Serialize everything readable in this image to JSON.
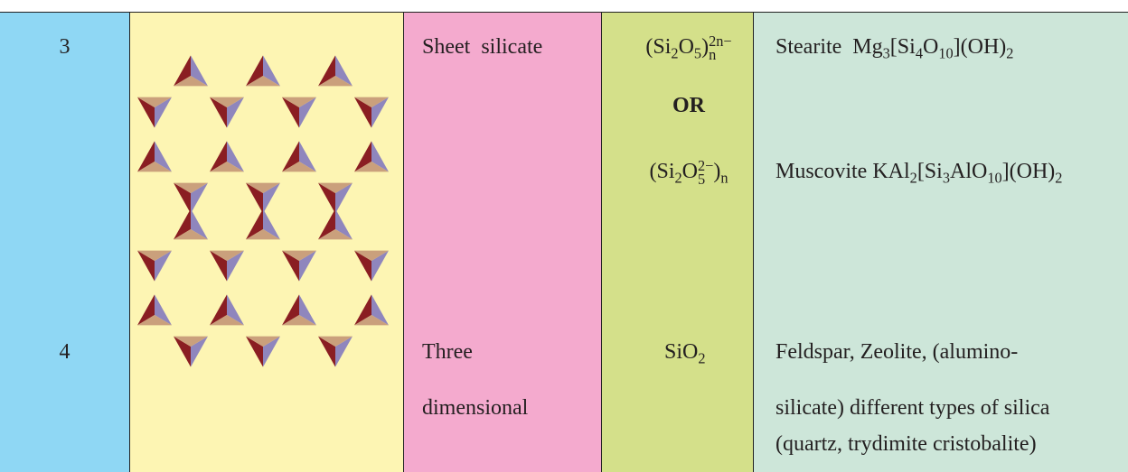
{
  "table": {
    "rows": [
      {
        "number": "3",
        "type": [
          [
            {
              "text": "Sheet  silicate"
            }
          ]
        ],
        "formula": [
          [
            {
              "text": "(Si"
            },
            {
              "sub": "2"
            },
            {
              "text": "O"
            },
            {
              "sub": "5"
            },
            {
              "text": ")"
            },
            {
              "sup": "2n−",
              "sub": "n"
            }
          ],
          [
            {
              "text": "OR",
              "bold": true
            }
          ],
          [
            {
              "text": "(Si"
            },
            {
              "sub": "2"
            },
            {
              "text": "O"
            },
            {
              "sup": "2−",
              "sub": "5"
            },
            {
              "text": ")"
            },
            {
              "sub": "n"
            }
          ]
        ],
        "examples": [
          [
            {
              "text": "Stearite  Mg"
            },
            {
              "sub": "3"
            },
            {
              "text": "[Si"
            },
            {
              "sub": "4"
            },
            {
              "text": "O"
            },
            {
              "sub": "10"
            },
            {
              "text": "](OH)"
            },
            {
              "sub": "2"
            }
          ],
          [
            {
              "text": "Muscovite KAl"
            },
            {
              "sub": "2"
            },
            {
              "text": "[Si"
            },
            {
              "sub": "3"
            },
            {
              "text": "AlO"
            },
            {
              "sub": "10"
            },
            {
              "text": "](OH)"
            },
            {
              "sub": "2"
            }
          ]
        ]
      },
      {
        "number": "4",
        "type": [
          [
            {
              "text": "Three"
            }
          ],
          [
            {
              "text": "dimensional"
            }
          ]
        ],
        "formula": [
          [
            {
              "text": "SiO"
            },
            {
              "sub": "2"
            }
          ]
        ],
        "examples": [
          [
            {
              "text": "Feldspar, Zeolite, (alumino-"
            }
          ],
          [
            {
              "text": "silicate) different types of silica"
            }
          ],
          [
            {
              "text": "(quartz, trydimite cristobalite)"
            }
          ]
        ]
      }
    ]
  }
}
